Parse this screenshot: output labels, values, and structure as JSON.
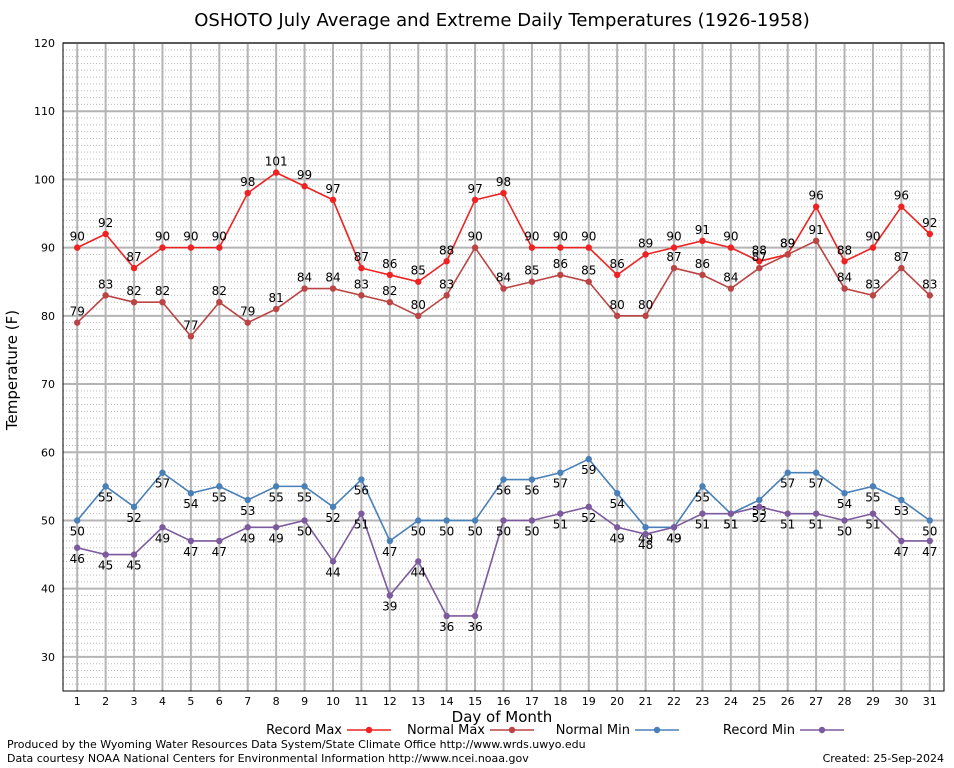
{
  "chart_data": {
    "type": "line",
    "title": "OSHOTO July Average and Extreme Daily Temperatures (1926-1958)",
    "xlabel": "Day of Month",
    "ylabel": "Temperature (F)",
    "x": [
      1,
      2,
      3,
      4,
      5,
      6,
      7,
      8,
      9,
      10,
      11,
      12,
      13,
      14,
      15,
      16,
      17,
      18,
      19,
      20,
      21,
      22,
      23,
      24,
      25,
      26,
      27,
      28,
      29,
      30,
      31
    ],
    "xlim": [
      0.5,
      31.5
    ],
    "ylim": [
      25,
      120
    ],
    "yticks": [
      30,
      40,
      50,
      60,
      70,
      80,
      90,
      100,
      110,
      120
    ],
    "grid": true,
    "legend_position": "bottom",
    "series": [
      {
        "name": "Record Max",
        "color": "#ee2222",
        "values": [
          90,
          92,
          87,
          90,
          90,
          90,
          98,
          101,
          99,
          97,
          87,
          86,
          85,
          88,
          97,
          98,
          90,
          90,
          90,
          86,
          89,
          90,
          91,
          90,
          88,
          89,
          96,
          88,
          90,
          96,
          92
        ]
      },
      {
        "name": "Normal Max",
        "color": "#bb4444",
        "values": [
          79,
          83,
          82,
          82,
          77,
          82,
          79,
          81,
          84,
          84,
          83,
          82,
          80,
          83,
          90,
          84,
          85,
          86,
          85,
          80,
          80,
          87,
          86,
          84,
          87,
          89,
          91,
          84,
          83,
          87,
          83
        ]
      },
      {
        "name": "Normal Min",
        "color": "#4a80b8",
        "values": [
          50,
          55,
          52,
          57,
          54,
          55,
          53,
          55,
          55,
          52,
          56,
          47,
          50,
          50,
          50,
          56,
          56,
          57,
          59,
          54,
          49,
          49,
          55,
          51,
          53,
          57,
          57,
          54,
          55,
          53,
          50
        ]
      },
      {
        "name": "Record Min",
        "color": "#7d5a9e",
        "values": [
          46,
          45,
          45,
          49,
          47,
          47,
          49,
          49,
          50,
          44,
          51,
          39,
          44,
          36,
          36,
          50,
          50,
          51,
          52,
          49,
          48,
          49,
          51,
          51,
          52,
          51,
          51,
          50,
          51,
          47,
          47
        ]
      }
    ]
  },
  "footer": {
    "produced_by": "Produced by the Wyoming Water Resources Data System/State Climate Office http://www.wrds.uwyo.edu",
    "courtesy": "Data courtesy NOAA National Centers for Environmental Information http://www.ncei.noaa.gov",
    "created": "Created:  25-Sep-2024"
  }
}
